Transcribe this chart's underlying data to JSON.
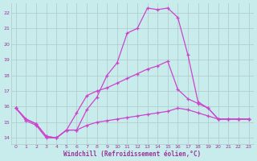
{
  "bg_color": "#c8ecec",
  "grid_color": "#b0c8c8",
  "line_color": "#cc44cc",
  "xlabel": "Windchill (Refroidissement éolien,°C)",
  "xlabel_color": "#993399",
  "xlim": [
    -0.5,
    23.5
  ],
  "ylim": [
    13.6,
    22.6
  ],
  "yticks": [
    14,
    15,
    16,
    17,
    18,
    19,
    20,
    21,
    22
  ],
  "xticks": [
    0,
    1,
    2,
    3,
    4,
    5,
    6,
    7,
    8,
    9,
    10,
    11,
    12,
    13,
    14,
    15,
    16,
    17,
    18,
    19,
    20,
    21,
    22,
    23
  ],
  "line1_x": [
    0,
    1,
    2,
    3,
    4,
    5,
    6,
    7,
    8,
    9,
    10,
    11,
    12,
    13,
    14,
    15,
    16,
    17,
    18,
    19,
    20,
    21,
    22,
    23
  ],
  "line1_y": [
    15.9,
    15.1,
    14.8,
    14.0,
    14.0,
    14.5,
    14.5,
    15.8,
    16.6,
    18.0,
    18.8,
    20.7,
    21.0,
    22.3,
    22.2,
    22.3,
    21.7,
    19.3,
    16.3,
    15.9,
    15.2,
    15.2,
    15.2,
    15.2
  ],
  "line2_x": [
    0,
    1,
    2,
    3,
    4,
    5,
    6,
    7,
    8,
    9,
    10,
    11,
    12,
    13,
    14,
    15,
    16,
    17,
    18,
    19,
    20,
    21,
    22,
    23
  ],
  "line2_y": [
    15.9,
    15.2,
    14.9,
    14.1,
    14.0,
    14.5,
    15.6,
    16.7,
    17.0,
    17.2,
    17.5,
    17.8,
    18.1,
    18.4,
    18.6,
    18.9,
    17.1,
    16.5,
    16.2,
    15.9,
    15.2,
    15.2,
    15.2,
    15.2
  ],
  "line3_x": [
    0,
    1,
    2,
    3,
    4,
    5,
    6,
    7,
    8,
    9,
    10,
    11,
    12,
    13,
    14,
    15,
    16,
    17,
    18,
    19,
    20,
    21,
    22,
    23
  ],
  "line3_y": [
    15.9,
    15.2,
    14.9,
    14.1,
    14.0,
    14.5,
    14.5,
    14.8,
    15.0,
    15.1,
    15.2,
    15.3,
    15.4,
    15.5,
    15.6,
    15.7,
    15.9,
    15.8,
    15.6,
    15.4,
    15.2,
    15.2,
    15.2,
    15.2
  ]
}
